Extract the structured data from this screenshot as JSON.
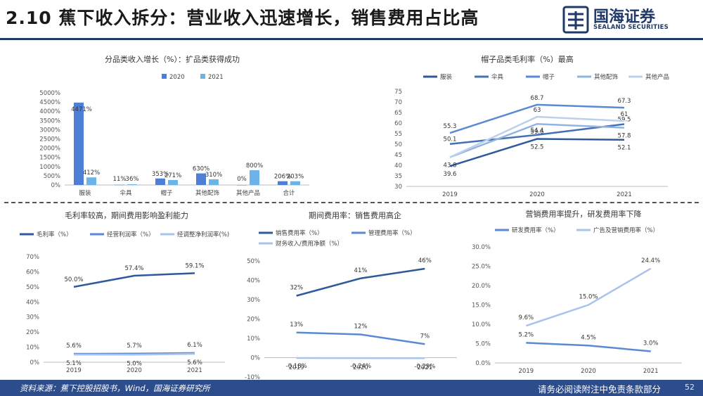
{
  "page": {
    "title": "2.10 蕉下收入拆分：营业收入迅速增长，销售费用占比高",
    "logo_cn": "国海证券",
    "logo_en": "SEALAND SECURITIES",
    "source": "资料来源：蕉下控股招股书，Wind，国海证券研究所",
    "disclaimer": "请务必阅读附注中免责条款部分",
    "page_number": "52",
    "colors": {
      "navy": "#1f3a68",
      "footer": "#2c4c8c"
    }
  },
  "chart_data": [
    {
      "id": "c1",
      "type": "bar",
      "title": "分品类收入增长（%）：扩品类获得成功",
      "categories": [
        "服装",
        "伞具",
        "帽子",
        "其他配饰",
        "其他产品",
        "合计"
      ],
      "series": [
        {
          "name": "2020",
          "color": "#4e7fd6",
          "values": [
            4471,
            11,
            353,
            630,
            0,
            206
          ],
          "labels": [
            "4471%",
            "11%",
            "353%",
            "630%",
            "0%",
            "206%"
          ]
        },
        {
          "name": "2021",
          "color": "#6cb4e8",
          "values": [
            412,
            36,
            271,
            310,
            800,
            203
          ],
          "labels": [
            "412%",
            "36%",
            "271%",
            "310%",
            "800%",
            "203%"
          ]
        }
      ],
      "ylim": [
        0,
        5000
      ],
      "yticks": [
        0,
        500,
        1000,
        1500,
        2000,
        2500,
        3000,
        3500,
        4000,
        4500,
        5000
      ],
      "ytick_labels": [
        "0%",
        "500%",
        "1000%",
        "1500%",
        "2000%",
        "2500%",
        "3000%",
        "3500%",
        "4000%",
        "4500%",
        "5000%"
      ],
      "legend": "top"
    },
    {
      "id": "c2",
      "type": "line",
      "title": "帽子品类毛利率（%）最高",
      "x": [
        "2019",
        "2020",
        "2021"
      ],
      "series": [
        {
          "name": "服装",
          "color": "#2e5a9c",
          "values": [
            39.6,
            52.5,
            52.1
          ],
          "labels": [
            "39.6",
            "52.5",
            "52.1"
          ]
        },
        {
          "name": "伞具",
          "color": "#4470b4",
          "values": [
            50.1,
            54.4,
            59.5
          ],
          "labels": [
            "50.1",
            "54.4",
            "59.5"
          ]
        },
        {
          "name": "帽子",
          "color": "#5a8ad4",
          "values": [
            55.3,
            68.7,
            67.3
          ],
          "labels": [
            "55.3",
            "68.7",
            "67.3"
          ]
        },
        {
          "name": "其他配饰",
          "color": "#93b4e0",
          "values": [
            43.8,
            59.6,
            57.8
          ],
          "labels": [
            "43.8",
            "59.6",
            "57.8"
          ]
        },
        {
          "name": "其他产品",
          "color": "#bcd0ee",
          "values": [
            43.8,
            63,
            61
          ],
          "labels": [
            "",
            "63",
            "61"
          ]
        }
      ],
      "ylim": [
        30,
        75
      ],
      "yticks": [
        30,
        35,
        40,
        45,
        50,
        55,
        60,
        65,
        70,
        75
      ],
      "ytick_labels": [
        "30",
        "35",
        "40",
        "45",
        "50",
        "55",
        "60",
        "65",
        "70",
        "75"
      ],
      "legend": "top"
    },
    {
      "id": "c3",
      "type": "line",
      "title": "毛利率较高，期间费用影响盈利能力",
      "x": [
        "2019",
        "2020",
        "2021"
      ],
      "series": [
        {
          "name": "毛利率（%）",
          "color": "#2e5a9c",
          "values": [
            50.0,
            57.4,
            59.1
          ],
          "labels": [
            "50.0%",
            "57.4%",
            "59.1%"
          ]
        },
        {
          "name": "经营利润率（%）",
          "color": "#5a8ad4",
          "values": [
            5.6,
            5.7,
            6.1
          ],
          "labels": [
            "5.6%",
            "5.7%",
            "6.1%"
          ]
        },
        {
          "name": "经调整净利润率(%)",
          "color": "#a9c3ea",
          "values": [
            5.1,
            5.0,
            5.6
          ],
          "labels": [
            "5.1%",
            "5.0%",
            "5.6%"
          ]
        }
      ],
      "ylim": [
        0,
        70
      ],
      "yticks": [
        0,
        10,
        20,
        30,
        40,
        50,
        60,
        70
      ],
      "ytick_labels": [
        "0%",
        "10%",
        "20%",
        "30%",
        "40%",
        "50%",
        "60%",
        "70%"
      ],
      "legend": "top"
    },
    {
      "id": "c4",
      "type": "line",
      "title": "期间费用率：销售费用高企",
      "x": [
        "2019",
        "2020",
        "2021"
      ],
      "series": [
        {
          "name": "销售费用率（%）",
          "color": "#2e5a9c",
          "values": [
            32,
            41,
            46
          ],
          "labels": [
            "32%",
            "41%",
            "46%"
          ]
        },
        {
          "name": "管理费用率（%）",
          "color": "#5a8ad4",
          "values": [
            13,
            12,
            7
          ],
          "labels": [
            "13%",
            "12%",
            "7%"
          ]
        },
        {
          "name": "财务收入/费用净额（%）",
          "color": "#a9c3ea",
          "values": [
            -0.18,
            -0.24,
            -0.29
          ],
          "labels": [
            "-0.18%",
            "-0.24%",
            "-0.29%"
          ]
        }
      ],
      "ylim": [
        -10,
        50
      ],
      "yticks": [
        -10,
        0,
        10,
        20,
        30,
        40,
        50
      ],
      "ytick_labels": [
        "-10%",
        "0%",
        "10%",
        "20%",
        "30%",
        "40%",
        "50%"
      ],
      "legend": "top"
    },
    {
      "id": "c5",
      "type": "line",
      "title": "营销费用率提升，研发费用率下降",
      "x": [
        "2019",
        "2020",
        "2021"
      ],
      "series": [
        {
          "name": "研发费用率（%）",
          "color": "#5a8ad4",
          "values": [
            5.2,
            4.5,
            3.0
          ],
          "labels": [
            "5.2%",
            "4.5%",
            "3.0%"
          ]
        },
        {
          "name": "广告及营销费用率（%）",
          "color": "#a9c3ea",
          "values": [
            9.6,
            15.0,
            24.4
          ],
          "labels": [
            "9.6%",
            "15.0%",
            "24.4%"
          ]
        }
      ],
      "ylim": [
        0,
        30
      ],
      "yticks": [
        0,
        5,
        10,
        15,
        20,
        25,
        30
      ],
      "ytick_labels": [
        "0.0%",
        "5.0%",
        "10.0%",
        "15.0%",
        "20.0%",
        "25.0%",
        "30.0%"
      ],
      "legend": "top"
    }
  ]
}
